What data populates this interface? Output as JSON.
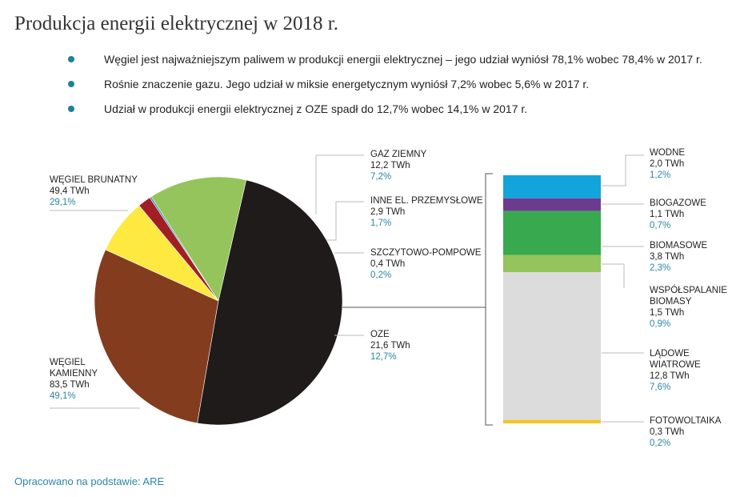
{
  "title": "Produkcja energii elektrycznej w 2018 r.",
  "bullets": [
    "Węgiel jest najważniejszym paliwem w produkcji energii elektrycznej – jego udział wyniósł 78,1% wobec 78,4% w 2017 r.",
    "Rośnie znaczenie gazu. Jego udział w miksie energetycznym wyniósł 7,2% wobec 5,6% w 2017 r.",
    "Udział w produkcji energii elektrycznej z OZE spadł do 12,7% wobec 14,1% w 2017 r."
  ],
  "source": "Opracowano na podstawie: ARE",
  "colors": {
    "accent": "#2b87a3",
    "bullet_dot": "#1e7f9a",
    "leader_line": "#bbbbbb",
    "text": "#222222"
  },
  "chart_data": [
    {
      "type": "pie",
      "unit": "TWh",
      "slices": [
        {
          "name": "WĘGIEL BRUNATNY",
          "label_lines": [
            "WĘGIEL BRUNATNY"
          ],
          "value": 49.4,
          "value_text": "49,4 TWh",
          "percent": 29.1,
          "percent_text": "29,1%",
          "color": "#843c1e"
        },
        {
          "name": "GAZ ZIEMNY",
          "label_lines": [
            "GAZ ZIEMNY"
          ],
          "value": 12.2,
          "value_text": "12,2 TWh",
          "percent": 7.2,
          "percent_text": "7,2%",
          "color": "#fde940"
        },
        {
          "name": "INNE EL. PRZEMYSŁOWE",
          "label_lines": [
            "INNE EL. PRZEMYSŁOWE"
          ],
          "value": 2.9,
          "value_text": "2,9 TWh",
          "percent": 1.7,
          "percent_text": "1,7%",
          "color": "#a11f24"
        },
        {
          "name": "SZCZYTOWO-POMPOWE",
          "label_lines": [
            "SZCZYTOWO-POMPOWE"
          ],
          "value": 0.4,
          "value_text": "0,4 TWh",
          "percent": 0.2,
          "percent_text": "0,2%",
          "color": "#3d8fc2"
        },
        {
          "name": "OZE",
          "label_lines": [
            "OZE"
          ],
          "value": 21.6,
          "value_text": "21,6 TWh",
          "percent": 12.7,
          "percent_text": "12,7%",
          "color": "#95c45c"
        },
        {
          "name": "WĘGIEL KAMIENNY",
          "label_lines": [
            "WĘGIEL",
            "KAMIENNY"
          ],
          "value": 83.5,
          "value_text": "83,5 TWh",
          "percent": 49.1,
          "percent_text": "49,1%",
          "color": "#1e1b1a"
        }
      ]
    },
    {
      "type": "bar",
      "stacked": true,
      "category": "OZE",
      "unit": "TWh",
      "segments": [
        {
          "name": "WODNE",
          "label_lines": [
            "WODNE"
          ],
          "value": 2.0,
          "value_text": "2,0 TWh",
          "percent": 1.2,
          "percent_text": "1,2%",
          "color": "#13a4db"
        },
        {
          "name": "BIOGAZOWE",
          "label_lines": [
            "BIOGAZOWE"
          ],
          "value": 1.1,
          "value_text": "1,1 TWh",
          "percent": 0.7,
          "percent_text": "0,7%",
          "color": "#6d3b8e"
        },
        {
          "name": "BIOMASOWE",
          "label_lines": [
            "BIOMASOWE"
          ],
          "value": 3.8,
          "value_text": "3,8 TWh",
          "percent": 2.3,
          "percent_text": "2,3%",
          "color": "#38a94f"
        },
        {
          "name": "WSPÓŁSPALANIE BIOMASY",
          "label_lines": [
            "WSPÓŁSPALANIE",
            "BIOMASY"
          ],
          "value": 1.5,
          "value_text": "1,5 TWh",
          "percent": 0.9,
          "percent_text": "0,9%",
          "color": "#95c45c"
        },
        {
          "name": "LĄDOWE WIATROWE",
          "label_lines": [
            "LĄDOWE",
            "WIATROWE"
          ],
          "value": 12.8,
          "value_text": "12,8 TWh",
          "percent": 7.6,
          "percent_text": "7,6%",
          "color": "#dcdcdc"
        },
        {
          "name": "FOTOWOLTAIKA",
          "label_lines": [
            "FOTOWOLTAIKA"
          ],
          "value": 0.3,
          "value_text": "0,3 TWh",
          "percent": 0.2,
          "percent_text": "0,2%",
          "color": "#f6c324"
        }
      ]
    }
  ]
}
